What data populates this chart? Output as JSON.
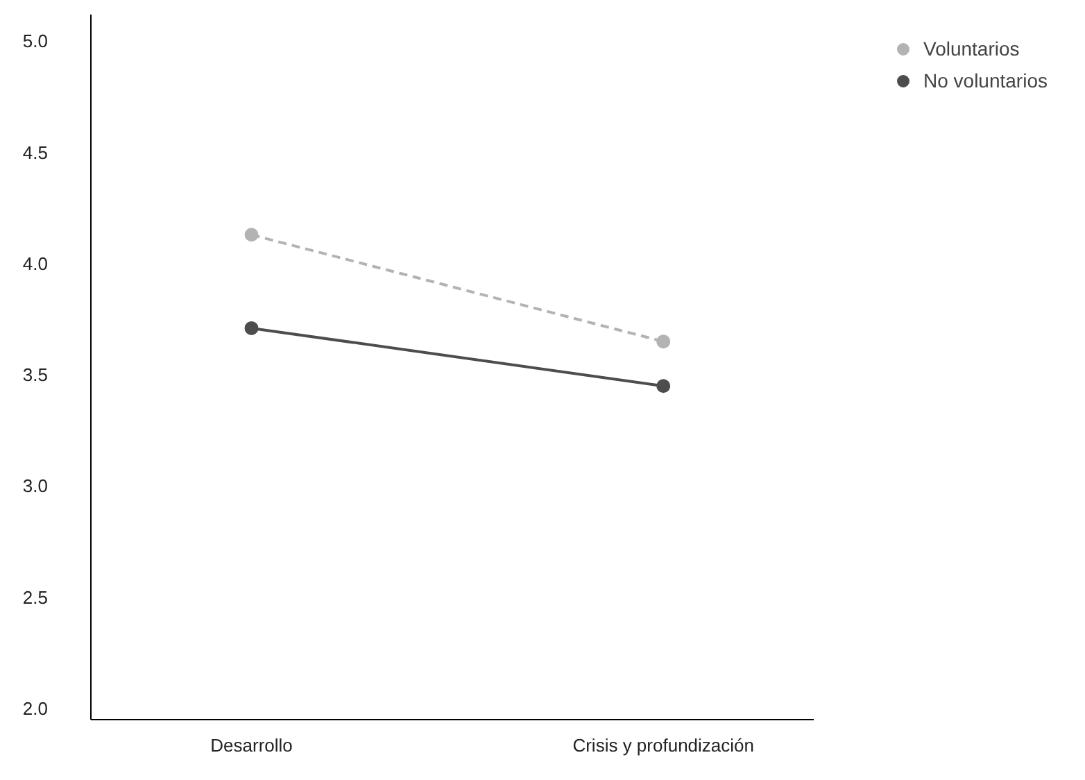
{
  "chart_data": {
    "type": "line",
    "categories": [
      "Desarrollo",
      "Crisis y profundización"
    ],
    "series": [
      {
        "name": "Voluntarios",
        "color": "#b3b3b3",
        "values": [
          4.13,
          3.65
        ],
        "line_style": "dashed"
      },
      {
        "name": "No voluntarios",
        "color": "#4d4d4d",
        "values": [
          3.71,
          3.45
        ],
        "line_style": "solid"
      }
    ],
    "ylim": [
      1.95,
      5.12
    ],
    "yticks": [
      {
        "value": 2,
        "label": "2.0"
      },
      {
        "value": 2.5,
        "label": "2.5"
      },
      {
        "value": 3,
        "label": "3.0"
      },
      {
        "value": 3.5,
        "label": "3.5"
      },
      {
        "value": 4,
        "label": "4.0"
      },
      {
        "value": 4.5,
        "label": "4.5"
      },
      {
        "value": 5,
        "label": "5.0"
      }
    ],
    "marker": "circle",
    "legend": "top right",
    "grid": false
  }
}
